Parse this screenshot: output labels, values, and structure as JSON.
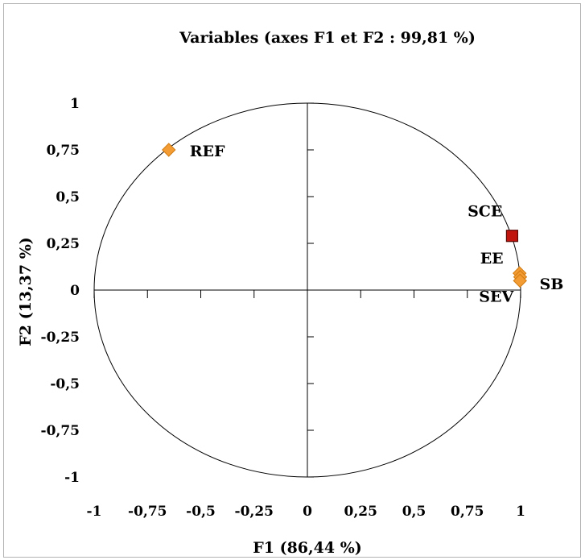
{
  "chart_data": {
    "type": "scatter",
    "title": "Variables (axes F1 et F2 : 99,81 %)",
    "xlabel": "F1 (86,44 %)",
    "ylabel": "F2 (13,37 %)",
    "xlim": [
      -1,
      1
    ],
    "ylim": [
      -1,
      1
    ],
    "x_ticks": [
      {
        "value": -1,
        "label": "-1"
      },
      {
        "value": -0.75,
        "label": "-0,75"
      },
      {
        "value": -0.5,
        "label": "-0,5"
      },
      {
        "value": -0.25,
        "label": "-0,25"
      },
      {
        "value": 0,
        "label": "0"
      },
      {
        "value": 0.25,
        "label": "0,25"
      },
      {
        "value": 0.5,
        "label": "0,5"
      },
      {
        "value": 0.75,
        "label": "0,75"
      },
      {
        "value": 1,
        "label": "1"
      }
    ],
    "y_ticks": [
      {
        "value": 1,
        "label": "1"
      },
      {
        "value": 0.75,
        "label": "0,75"
      },
      {
        "value": 0.5,
        "label": "0,5"
      },
      {
        "value": 0.25,
        "label": "0,25"
      },
      {
        "value": 0,
        "label": "0"
      },
      {
        "value": -0.25,
        "label": "-0,25"
      },
      {
        "value": -0.5,
        "label": "-0,5"
      },
      {
        "value": -0.75,
        "label": "-0,75"
      },
      {
        "value": -1,
        "label": "-1"
      }
    ],
    "unit_circle": true,
    "grid": false,
    "points": [
      {
        "label": "REF",
        "x": -0.65,
        "y": 0.75,
        "marker": "diamond",
        "color": "#f39c33"
      },
      {
        "label": "SCE",
        "x": 0.96,
        "y": 0.29,
        "marker": "square",
        "color": "#c0150f"
      },
      {
        "label": "EE",
        "x": 0.995,
        "y": 0.09,
        "marker": "diamond",
        "color": "#f39c33"
      },
      {
        "label": "SB",
        "x": 0.998,
        "y": 0.07,
        "marker": "diamond",
        "color": "#f39c33"
      },
      {
        "label": "SEV",
        "x": 0.997,
        "y": 0.05,
        "marker": "diamond",
        "color": "#f39c33"
      }
    ]
  }
}
